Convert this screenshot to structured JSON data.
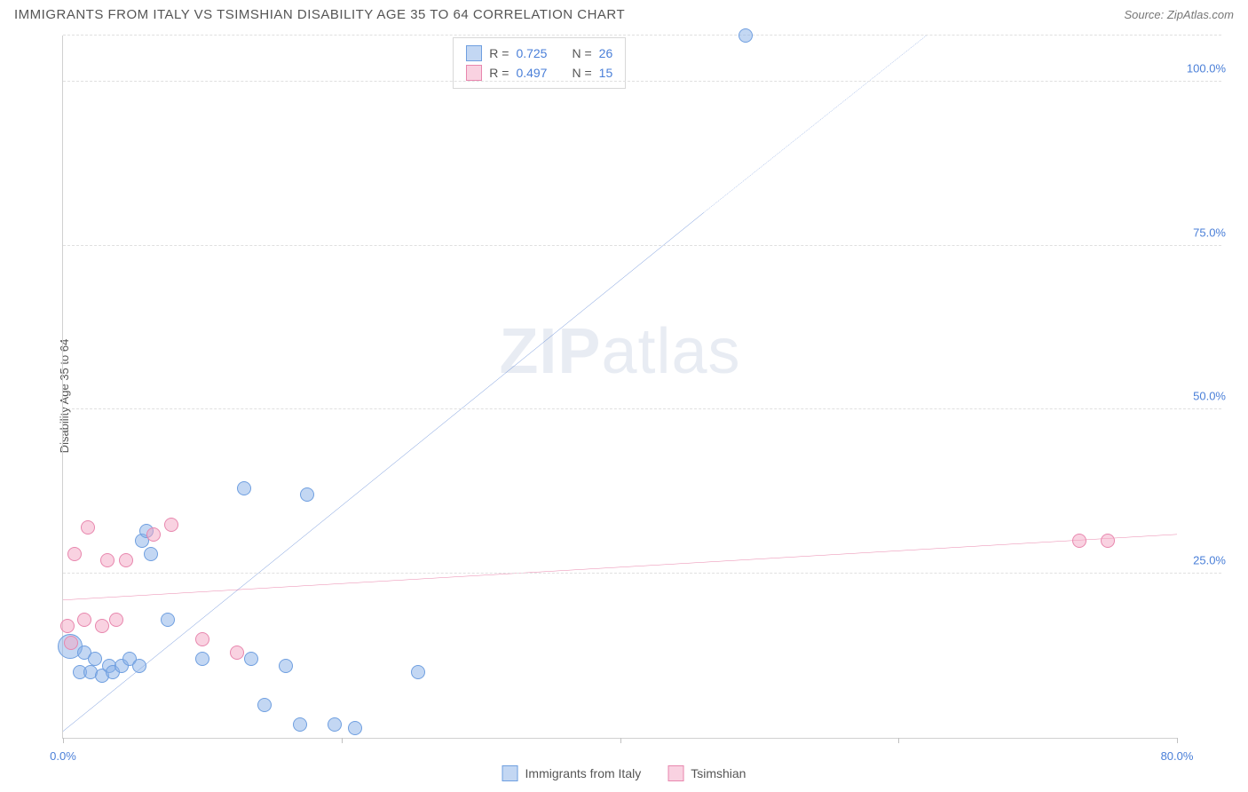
{
  "header": {
    "title": "IMMIGRANTS FROM ITALY VS TSIMSHIAN DISABILITY AGE 35 TO 64 CORRELATION CHART",
    "source_prefix": "Source: ",
    "source": "ZipAtlas.com"
  },
  "watermark": {
    "part1": "ZIP",
    "part2": "atlas"
  },
  "y_axis_label": "Disability Age 35 to 64",
  "chart": {
    "type": "scatter",
    "xlim": [
      0,
      80
    ],
    "ylim": [
      0,
      107
    ],
    "x_ticks": [
      0,
      20,
      40,
      60,
      80
    ],
    "x_tick_labels": [
      "0.0%",
      "",
      "",
      "",
      "80.0%"
    ],
    "y_gridlines": [
      25,
      50,
      75,
      100,
      107
    ],
    "y_tick_labels": [
      "25.0%",
      "50.0%",
      "75.0%",
      "100.0%",
      ""
    ],
    "background_color": "#ffffff",
    "grid_color": "#e0e0e0",
    "axis_color": "#d0d0d0",
    "tick_label_color": "#4a7fd8"
  },
  "series": [
    {
      "name": "Immigrants from Italy",
      "fill": "rgba(135,176,232,0.5)",
      "stroke": "#6f9fe0",
      "line_color": "#2e63c9",
      "marker_radius": 8,
      "R": "0.725",
      "N": "26",
      "trend": {
        "x1": 0,
        "y1": 1,
        "x2": 46,
        "y2": 80,
        "dash_from_x": 46,
        "x3": 62,
        "y3": 107
      },
      "points": [
        {
          "x": 0.5,
          "y": 14,
          "r": 14
        },
        {
          "x": 1.2,
          "y": 10,
          "r": 8
        },
        {
          "x": 1.5,
          "y": 13,
          "r": 8
        },
        {
          "x": 2.0,
          "y": 10,
          "r": 8
        },
        {
          "x": 2.3,
          "y": 12,
          "r": 8
        },
        {
          "x": 2.8,
          "y": 9.5,
          "r": 8
        },
        {
          "x": 3.3,
          "y": 11,
          "r": 8
        },
        {
          "x": 3.6,
          "y": 10,
          "r": 8
        },
        {
          "x": 4.2,
          "y": 11,
          "r": 8
        },
        {
          "x": 4.8,
          "y": 12,
          "r": 8
        },
        {
          "x": 5.5,
          "y": 11,
          "r": 8
        },
        {
          "x": 5.7,
          "y": 30,
          "r": 8
        },
        {
          "x": 6.0,
          "y": 31.5,
          "r": 8
        },
        {
          "x": 6.3,
          "y": 28,
          "r": 8
        },
        {
          "x": 7.5,
          "y": 18,
          "r": 8
        },
        {
          "x": 10.0,
          "y": 12,
          "r": 8
        },
        {
          "x": 13.0,
          "y": 38,
          "r": 8
        },
        {
          "x": 13.5,
          "y": 12,
          "r": 8
        },
        {
          "x": 14.5,
          "y": 5,
          "r": 8
        },
        {
          "x": 16.0,
          "y": 11,
          "r": 8
        },
        {
          "x": 17.0,
          "y": 2,
          "r": 8
        },
        {
          "x": 17.5,
          "y": 37,
          "r": 8
        },
        {
          "x": 19.5,
          "y": 2,
          "r": 8
        },
        {
          "x": 21.0,
          "y": 1.5,
          "r": 8
        },
        {
          "x": 25.5,
          "y": 10,
          "r": 8
        },
        {
          "x": 49.0,
          "y": 107,
          "r": 8
        }
      ]
    },
    {
      "name": "Tsimshian",
      "fill": "rgba(244,165,196,0.5)",
      "stroke": "#e887ae",
      "line_color": "#e14f86",
      "marker_radius": 8,
      "R": "0.497",
      "N": "15",
      "trend": {
        "x1": 0,
        "y1": 21,
        "x2": 80,
        "y2": 31
      },
      "points": [
        {
          "x": 0.3,
          "y": 17,
          "r": 8
        },
        {
          "x": 0.6,
          "y": 14.5,
          "r": 8
        },
        {
          "x": 0.8,
          "y": 28,
          "r": 8
        },
        {
          "x": 1.5,
          "y": 18,
          "r": 8
        },
        {
          "x": 1.8,
          "y": 32,
          "r": 8
        },
        {
          "x": 2.8,
          "y": 17,
          "r": 8
        },
        {
          "x": 3.2,
          "y": 27,
          "r": 8
        },
        {
          "x": 3.8,
          "y": 18,
          "r": 8
        },
        {
          "x": 4.5,
          "y": 27,
          "r": 8
        },
        {
          "x": 6.5,
          "y": 31,
          "r": 8
        },
        {
          "x": 7.8,
          "y": 32.5,
          "r": 8
        },
        {
          "x": 10.0,
          "y": 15,
          "r": 8
        },
        {
          "x": 12.5,
          "y": 13,
          "r": 8
        },
        {
          "x": 73.0,
          "y": 30,
          "r": 8
        },
        {
          "x": 75.0,
          "y": 30,
          "r": 8
        }
      ]
    }
  ],
  "legend_top": {
    "row_label_R": "R =",
    "row_label_N": "N ="
  },
  "legend_bottom": {
    "items": [
      "Immigrants from Italy",
      "Tsimshian"
    ]
  }
}
